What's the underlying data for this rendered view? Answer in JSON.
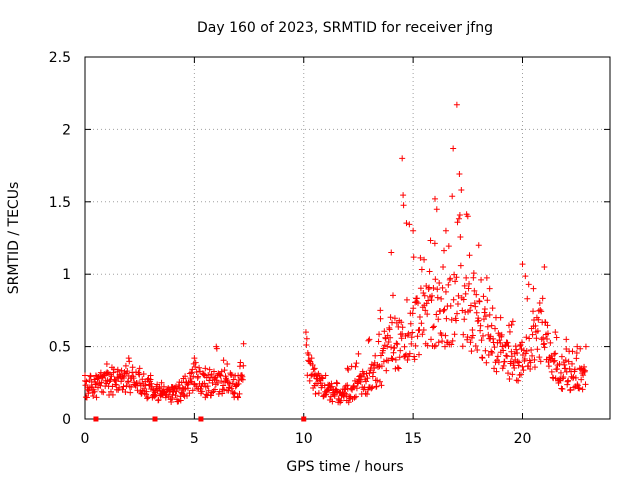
{
  "chart_data": {
    "type": "scatter",
    "title": "Day 160 of 2023, SRMTID for receiver jfng",
    "xlabel": "GPS time / hours",
    "ylabel": "SRMTID / TECUs",
    "xlim": [
      0,
      24
    ],
    "ylim": [
      0,
      2.5
    ],
    "xticks": [
      0,
      5,
      10,
      15,
      20
    ],
    "yticks": [
      0,
      0.5,
      1,
      1.5,
      2,
      2.5
    ],
    "xtick_labels": [
      "0",
      "5",
      "10",
      "15",
      "20"
    ],
    "ytick_labels": [
      "0",
      "0.5",
      "1",
      "1.5",
      "2",
      "2.5"
    ],
    "grid": true,
    "marker": "+",
    "series": [
      {
        "name": "SRMTID",
        "color": "#ff0000",
        "envelope_hours": [
          0,
          0.5,
          1,
          1.5,
          2,
          2.5,
          3,
          3.5,
          4,
          4.5,
          5,
          5.5,
          6,
          6.5,
          7,
          7.25,
          10.1,
          10.5,
          11,
          11.5,
          12,
          12.5,
          13,
          13.5,
          14,
          14.5,
          15,
          15.5,
          16,
          16.5,
          17,
          17.5,
          18,
          18.5,
          19,
          19.5,
          20,
          20.5,
          21,
          21.5,
          22,
          22.5,
          22.9
        ],
        "envelope_median": [
          0.2,
          0.22,
          0.25,
          0.25,
          0.26,
          0.24,
          0.2,
          0.16,
          0.15,
          0.2,
          0.3,
          0.22,
          0.25,
          0.24,
          0.22,
          0.3,
          0.45,
          0.25,
          0.2,
          0.15,
          0.17,
          0.22,
          0.27,
          0.32,
          0.55,
          0.5,
          0.6,
          0.7,
          0.75,
          0.65,
          0.85,
          0.7,
          0.65,
          0.55,
          0.45,
          0.35,
          0.4,
          0.55,
          0.55,
          0.35,
          0.3,
          0.28,
          0.3
        ],
        "envelope_max": [
          0.3,
          0.3,
          0.38,
          0.34,
          0.42,
          0.35,
          0.3,
          0.25,
          0.22,
          0.28,
          0.42,
          0.35,
          0.5,
          0.38,
          0.3,
          0.52,
          0.6,
          0.35,
          0.3,
          0.25,
          0.35,
          0.45,
          0.55,
          0.75,
          1.15,
          1.8,
          1.3,
          1.1,
          1.52,
          1.3,
          2.17,
          1.4,
          1.2,
          0.9,
          0.7,
          0.65,
          1.07,
          0.9,
          1.05,
          0.6,
          0.55,
          0.5,
          0.5
        ],
        "zero_points_hours": [
          0.5,
          3.2,
          5.3,
          10.0
        ]
      }
    ]
  }
}
